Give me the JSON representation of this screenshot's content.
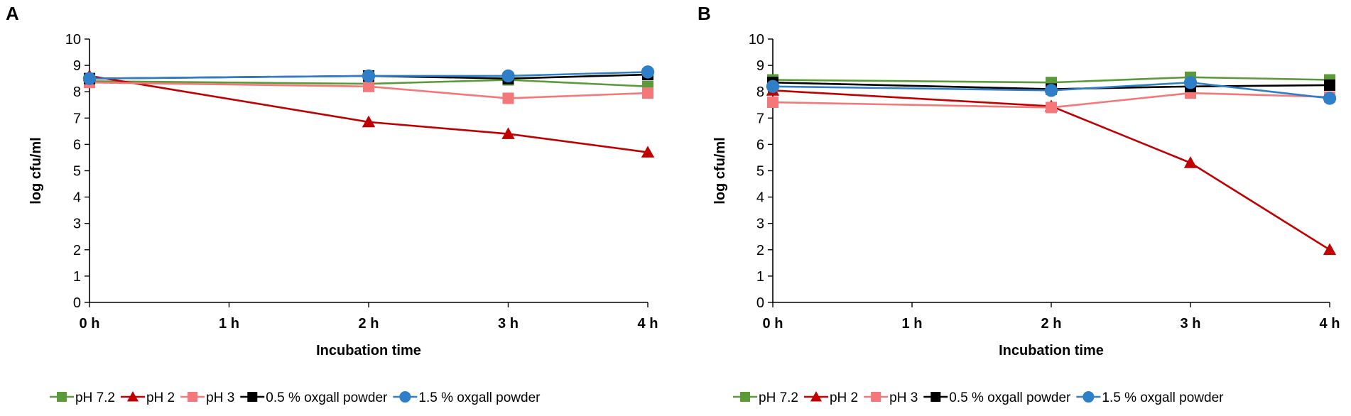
{
  "chart_data": [
    {
      "type": "line",
      "panel": "A",
      "title": "",
      "xlabel": "Incubation time",
      "ylabel": "log cfu/ml",
      "x": [
        0,
        1,
        2,
        3,
        4
      ],
      "x_tick_labels": [
        "0 h",
        "1 h",
        "2 h",
        "3 h",
        "4 h"
      ],
      "y_ticks": [
        "0",
        "1",
        "2",
        "3",
        "4",
        "5",
        "6",
        "7",
        "8",
        "9",
        "10"
      ],
      "ylim": [
        0,
        10
      ],
      "xlim": [
        0,
        4
      ],
      "grid": false,
      "legend_position": "bottom",
      "series": [
        {
          "name": "pH 7.2",
          "color": "#5a9a3a",
          "marker": "square",
          "x": [
            0,
            2,
            3,
            4
          ],
          "values": [
            8.4,
            8.3,
            8.45,
            8.2
          ]
        },
        {
          "name": "pH 2",
          "color": "#c00000",
          "marker": "triangle",
          "x": [
            0,
            2,
            3,
            4
          ],
          "values": [
            8.6,
            6.85,
            6.4,
            5.7
          ]
        },
        {
          "name": "pH 3",
          "color": "#f4777a",
          "marker": "square",
          "x": [
            0,
            2,
            3,
            4
          ],
          "values": [
            8.35,
            8.2,
            7.75,
            7.95
          ]
        },
        {
          "name": "0.5 % oxgall powder",
          "color": "#000000",
          "marker": "square",
          "x": [
            0,
            2,
            3,
            4
          ],
          "values": [
            8.5,
            8.6,
            8.5,
            8.65
          ]
        },
        {
          "name": "1.5 % oxgall powder",
          "color": "#2f7fc8",
          "marker": "circle",
          "x": [
            0,
            2,
            3,
            4
          ],
          "values": [
            8.5,
            8.6,
            8.6,
            8.75
          ]
        }
      ]
    },
    {
      "type": "line",
      "panel": "B",
      "title": "",
      "xlabel": "Incubation time",
      "ylabel": "log cfu/ml",
      "x": [
        0,
        1,
        2,
        3,
        4
      ],
      "x_tick_labels": [
        "0 h",
        "1 h",
        "2 h",
        "3 h",
        "4 h"
      ],
      "y_ticks": [
        "0",
        "1",
        "2",
        "3",
        "4",
        "5",
        "6",
        "7",
        "8",
        "9",
        "10"
      ],
      "ylim": [
        0,
        10
      ],
      "xlim": [
        0,
        4
      ],
      "grid": false,
      "legend_position": "bottom",
      "series": [
        {
          "name": "pH 7.2",
          "color": "#5a9a3a",
          "marker": "square",
          "x": [
            0,
            2,
            3,
            4
          ],
          "values": [
            8.45,
            8.35,
            8.55,
            8.45
          ]
        },
        {
          "name": "pH 2",
          "color": "#c00000",
          "marker": "triangle",
          "x": [
            0,
            2,
            3,
            4
          ],
          "values": [
            8.05,
            7.45,
            5.3,
            2.0
          ]
        },
        {
          "name": "pH 3",
          "color": "#f4777a",
          "marker": "square",
          "x": [
            0,
            2,
            3,
            4
          ],
          "values": [
            7.6,
            7.4,
            7.95,
            7.8
          ]
        },
        {
          "name": "0.5 % oxgall powder",
          "color": "#000000",
          "marker": "square",
          "x": [
            0,
            2,
            3,
            4
          ],
          "values": [
            8.35,
            8.1,
            8.2,
            8.25
          ]
        },
        {
          "name": "1.5 % oxgall powder",
          "color": "#2f7fc8",
          "marker": "circle",
          "x": [
            0,
            2,
            3,
            4
          ],
          "values": [
            8.2,
            8.05,
            8.35,
            7.75
          ]
        }
      ]
    }
  ]
}
